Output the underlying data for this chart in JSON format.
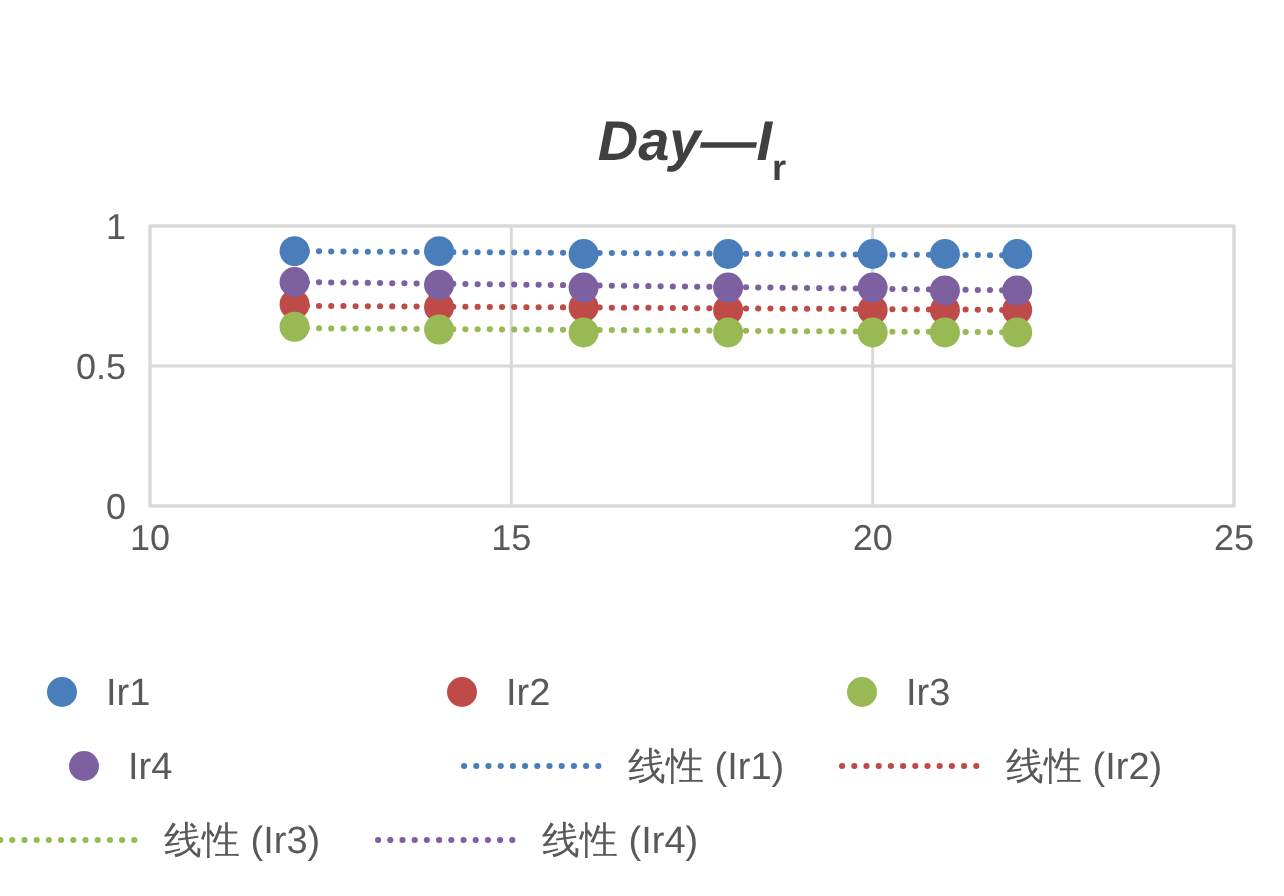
{
  "chart_data": {
    "type": "scatter",
    "title": "Day—I$_{r}$",
    "x": [
      12,
      14,
      16,
      18,
      20,
      21,
      22
    ],
    "xlim": [
      10,
      25
    ],
    "xticks": [
      10,
      15,
      20,
      25
    ],
    "ylim": [
      0,
      1
    ],
    "yticks": [
      0,
      0.5,
      1
    ],
    "grid": true,
    "legend": "bottom",
    "marker": "circle",
    "series": [
      {
        "name": "Ir1",
        "color": "#4a7ebb",
        "values": [
          0.91,
          0.91,
          0.9,
          0.9,
          0.9,
          0.9,
          0.9
        ]
      },
      {
        "name": "Ir2",
        "color": "#be4b48",
        "values": [
          0.72,
          0.71,
          0.71,
          0.7,
          0.7,
          0.7,
          0.7
        ]
      },
      {
        "name": "Ir3",
        "color": "#98b954",
        "values": [
          0.64,
          0.63,
          0.62,
          0.62,
          0.62,
          0.62,
          0.62
        ]
      },
      {
        "name": "Ir4",
        "color": "#7d60a0",
        "values": [
          0.8,
          0.79,
          0.78,
          0.78,
          0.78,
          0.77,
          0.77
        ]
      },
      {
        "name": "线性 (Ir1)",
        "type": "line",
        "marker": "none",
        "line_style": "dotted",
        "color": "#4a7ebb",
        "values": [
          0.91,
          0.907,
          0.904,
          0.901,
          0.898,
          0.897,
          0.895
        ]
      },
      {
        "name": "线性 (Ir2)",
        "type": "line",
        "marker": "none",
        "line_style": "dotted",
        "color": "#be4b48",
        "values": [
          0.715,
          0.712,
          0.709,
          0.706,
          0.703,
          0.702,
          0.7
        ]
      },
      {
        "name": "线性 (Ir3)",
        "type": "line",
        "marker": "none",
        "line_style": "dotted",
        "color": "#98b954",
        "values": [
          0.635,
          0.632,
          0.629,
          0.626,
          0.623,
          0.622,
          0.62
        ]
      },
      {
        "name": "线性 (Ir4)",
        "type": "line",
        "marker": "none",
        "line_style": "dotted",
        "color": "#7d60a0",
        "values": [
          0.8,
          0.794,
          0.788,
          0.782,
          0.776,
          0.773,
          0.77
        ]
      }
    ]
  }
}
